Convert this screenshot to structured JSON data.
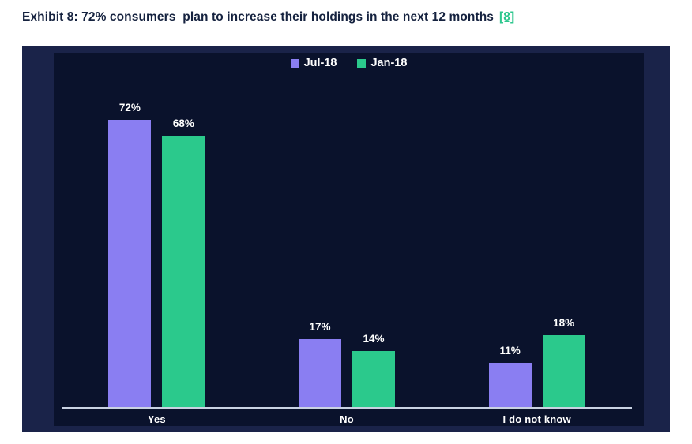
{
  "header": {
    "title": "Exhibit 8: 72% consumers  plan to increase their holdings in the next 12 months",
    "reference_link": "[8]"
  },
  "colors": {
    "title_text": "#15223f",
    "reference_link": "#2ec78e",
    "panel_outer": "#1a2349",
    "plot_inner": "#0a122c",
    "axis_line": "#c9d2e2",
    "label_text": "#ffffff"
  },
  "chart_data": {
    "type": "bar",
    "title": "Exhibit 8: 72% consumers plan to increase their holdings in the next 12 months",
    "categories": [
      "Yes",
      "No",
      "I do not know"
    ],
    "series": [
      {
        "name": "Jul-18",
        "color": "#8a7ef2",
        "values": [
          72,
          17,
          11
        ]
      },
      {
        "name": "Jan-18",
        "color": "#2bc98c",
        "values": [
          68,
          14,
          18
        ]
      }
    ],
    "value_suffix": "%",
    "data_labels": true,
    "ylim": [
      0,
      89
    ],
    "y_axis_visible": false,
    "grid": false,
    "legend_position": "top-center",
    "background": "dark-navy"
  }
}
